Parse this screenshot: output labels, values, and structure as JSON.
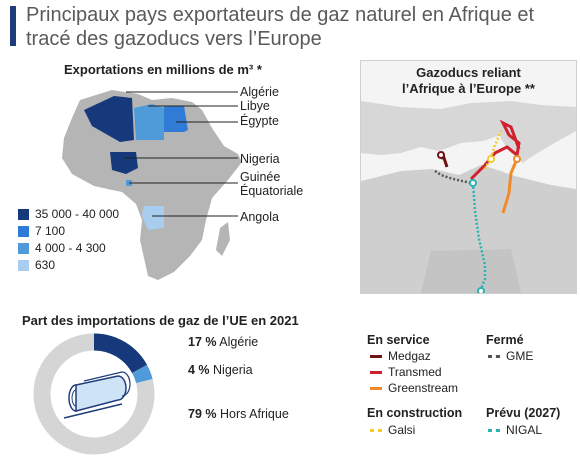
{
  "title": "Principaux pays exportateurs de gaz naturel en Afrique et tracé des gazoducs vers l’Europe",
  "chart_data": [
    {
      "type": "map",
      "title": "Exportations en millions de m³ *",
      "legend": [
        {
          "label": "35 000 - 40 000",
          "color": "#15397a"
        },
        {
          "label": "7 100",
          "color": "#2f7bd6"
        },
        {
          "label": "4 000 - 4 300",
          "color": "#4f9ad8"
        },
        {
          "label": "630",
          "color": "#a9cdee"
        }
      ],
      "countries": [
        {
          "name": "Algérie",
          "range": "35 000 - 40 000"
        },
        {
          "name": "Libye",
          "range": "4 000 - 4 300"
        },
        {
          "name": "Égypte",
          "range": "7 100"
        },
        {
          "name": "Nigeria",
          "range": "35 000 - 40 000"
        },
        {
          "name": "Guinée Équatoriale",
          "label_lines": [
            "Guinée",
            "Équatoriale"
          ],
          "range": "4 000 - 4 300"
        },
        {
          "name": "Angola",
          "range": "630"
        }
      ]
    },
    {
      "type": "pie",
      "title": "Part des importations de gaz de l’UE en 2021",
      "slices": [
        {
          "pct": "17 %",
          "name": "Algérie",
          "value": 17,
          "color": "#15397a"
        },
        {
          "pct": "4 %",
          "name": "Nigeria",
          "value": 4,
          "color": "#4f9ad8"
        },
        {
          "pct": "79 %",
          "name": "Hors Afrique",
          "value": 79,
          "color": "#d5d5d5"
        }
      ]
    }
  ],
  "pipelines": {
    "title_lines": [
      "Gazoducs reliant",
      "l’Afrique à l’Europe **"
    ],
    "groups": [
      {
        "header": "En service",
        "items": [
          {
            "name": "Medgaz",
            "color": "#6e1212",
            "style": "solid"
          },
          {
            "name": "Transmed",
            "color": "#d0202e",
            "style": "solid"
          },
          {
            "name": "Greenstream",
            "color": "#f08a2a",
            "style": "solid"
          }
        ]
      },
      {
        "header": "Fermé",
        "items": [
          {
            "name": "GME",
            "color": "#555555",
            "style": "dotted"
          }
        ]
      },
      {
        "header": "En construction",
        "items": [
          {
            "name": "Galsi",
            "color": "#f2cc2a",
            "style": "dotted"
          }
        ]
      },
      {
        "header": "Prévu (2027)",
        "items": [
          {
            "name": "NIGAL",
            "color": "#2bb3b0",
            "style": "dotted"
          }
        ]
      }
    ]
  }
}
